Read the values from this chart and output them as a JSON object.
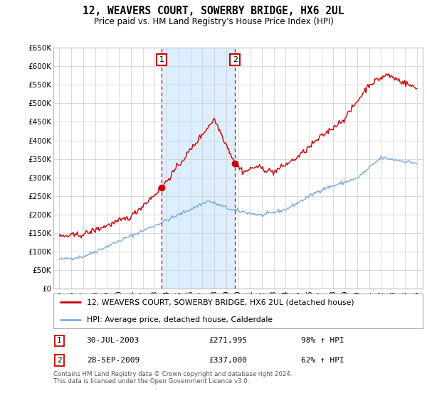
{
  "title": "12, WEAVERS COURT, SOWERBY BRIDGE, HX6 2UL",
  "subtitle": "Price paid vs. HM Land Registry's House Price Index (HPI)",
  "ylabel_ticks": [
    "£0",
    "£50K",
    "£100K",
    "£150K",
    "£200K",
    "£250K",
    "£300K",
    "£350K",
    "£400K",
    "£450K",
    "£500K",
    "£550K",
    "£600K",
    "£650K"
  ],
  "ylim": [
    0,
    650000
  ],
  "yticks": [
    0,
    50000,
    100000,
    150000,
    200000,
    250000,
    300000,
    350000,
    400000,
    450000,
    500000,
    550000,
    600000,
    650000
  ],
  "xlim_start": 1994.5,
  "xlim_end": 2025.5,
  "sale1_date": "30-JUL-2003",
  "sale1_price": 271995,
  "sale1_year": 2003.57,
  "sale2_date": "28-SEP-2009",
  "sale2_price": 337000,
  "sale2_year": 2009.75,
  "legend_line1": "12, WEAVERS COURT, SOWERBY BRIDGE, HX6 2UL (detached house)",
  "legend_line2": "HPI: Average price, detached house, Calderdale",
  "footer": "Contains HM Land Registry data © Crown copyright and database right 2024.\nThis data is licensed under the Open Government Licence v3.0.",
  "red_color": "#cc0000",
  "blue_color": "#7aade0",
  "shade_color": "#ddeeff",
  "grid_color": "#cccccc",
  "sale1_label": "1",
  "sale2_label": "2"
}
